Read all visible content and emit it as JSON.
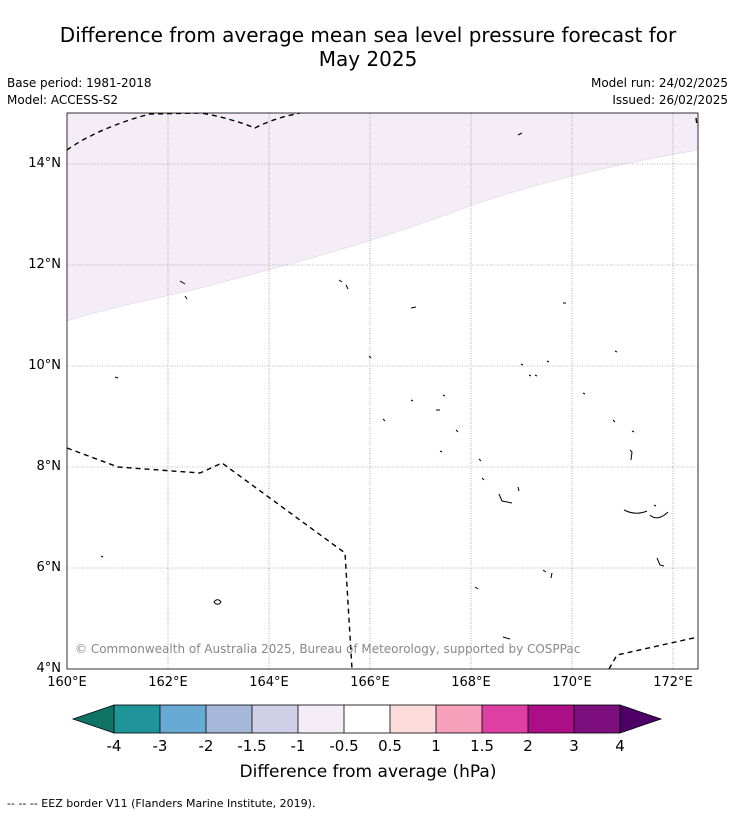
{
  "title_line1": "Difference from average mean sea level pressure forecast for",
  "title_line2": "May 2025",
  "base_period": "Base period: 1981-2018",
  "model": "Model: ACCESS-S2",
  "model_run": "Model run: 24/02/2025",
  "issued": "Issued: 26/02/2025",
  "copyright": "© Commonwealth of Australia 2025, Bureau of Meteorology, supported by COSPPac",
  "y_ticks": [
    "14°N",
    "12°N",
    "10°N",
    "8°N",
    "6°N",
    "4°N"
  ],
  "x_ticks": [
    "160°E",
    "162°E",
    "164°E",
    "166°E",
    "168°E",
    "170°E",
    "172°E"
  ],
  "colorbar": {
    "title": "Difference from average (hPa)",
    "labels": [
      "-4",
      "-3",
      "-2",
      "-1.5",
      "-1",
      "-0.5",
      "0.5",
      "1",
      "1.5",
      "2",
      "3",
      "4"
    ],
    "colors": [
      "#0f7466",
      "#1f9499",
      "#67abd5",
      "#a5b8da",
      "#cfd0e8",
      "#f4ecf6",
      "#ffffff",
      "#fddcdc",
      "#f6a0bc",
      "#dd3fa2",
      "#ac0f85",
      "#7d0e7e",
      "#4f0068"
    ]
  },
  "footnote": "-- -- -- EEZ border V11 (Flanders Marine Institute, 2019).",
  "map_data": {
    "lon_range": [
      160,
      172.5
    ],
    "lat_range": [
      4,
      15
    ],
    "shaded_region": {
      "level": "-1 to -0.5",
      "color": "#f4ecf6"
    }
  }
}
